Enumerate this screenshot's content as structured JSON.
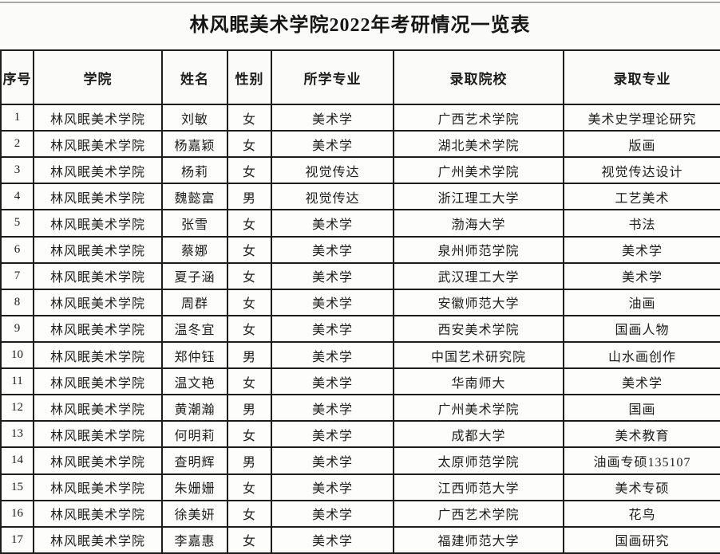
{
  "title": "林风眠美术学院2022年考研情况一览表",
  "table": {
    "column_keys": [
      "index",
      "college",
      "name",
      "gender",
      "major-studied",
      "admitted-school",
      "admitted-major"
    ],
    "headers": [
      "序号",
      "学院",
      "姓名",
      "性别",
      "所学专业",
      "录取院校",
      "录取专业"
    ],
    "rows": [
      [
        "1",
        "林风眠美术学院",
        "刘敏",
        "女",
        "美术学",
        "广西艺术学院",
        "美术史学理论研究"
      ],
      [
        "2",
        "林风眠美术学院",
        "杨嘉颖",
        "女",
        "美术学",
        "湖北美术学院",
        "版画"
      ],
      [
        "3",
        "林风眠美术学院",
        "杨莉",
        "女",
        "视觉传达",
        "广州美术学院",
        "视觉传达设计"
      ],
      [
        "4",
        "林风眠美术学院",
        "魏懿富",
        "男",
        "视觉传达",
        "浙江理工大学",
        "工艺美术"
      ],
      [
        "5",
        "林风眠美术学院",
        "张雪",
        "女",
        "美术学",
        "渤海大学",
        "书法"
      ],
      [
        "6",
        "林风眠美术学院",
        "蔡娜",
        "女",
        "美术学",
        "泉州师范学院",
        "美术学"
      ],
      [
        "7",
        "林风眠美术学院",
        "夏子涵",
        "女",
        "美术学",
        "武汉理工大学",
        "美术学"
      ],
      [
        "8",
        "林风眠美术学院",
        "周群",
        "女",
        "美术学",
        "安徽师范大学",
        "油画"
      ],
      [
        "9",
        "林风眠美术学院",
        "温冬宜",
        "女",
        "美术学",
        "西安美术学院",
        "国画人物"
      ],
      [
        "10",
        "林风眠美术学院",
        "郑仲钰",
        "男",
        "美术学",
        "中国艺术研究院",
        "山水画创作"
      ],
      [
        "11",
        "林风眠美术学院",
        "温文艳",
        "女",
        "美术学",
        "华南师大",
        "美术学"
      ],
      [
        "12",
        "林风眠美术学院",
        "黄潮瀚",
        "男",
        "美术学",
        "广州美术学院",
        "国画"
      ],
      [
        "13",
        "林风眠美术学院",
        "何明莉",
        "女",
        "美术学",
        "成都大学",
        "美术教育"
      ],
      [
        "14",
        "林风眠美术学院",
        "查明辉",
        "男",
        "美术学",
        "太原师范学院",
        "油画专硕135107"
      ],
      [
        "15",
        "林风眠美术学院",
        "朱姗姗",
        "女",
        "美术学",
        "江西师范大学",
        "美术专硕"
      ],
      [
        "16",
        "林风眠美术学院",
        "徐美妍",
        "女",
        "美术学",
        "广西艺术学院",
        "花鸟"
      ],
      [
        "17",
        "林风眠美术学院",
        "李嘉惠",
        "女",
        "美术学",
        "福建师范大学",
        "国画研究"
      ]
    ]
  },
  "colors": {
    "border": "#1c1c1c",
    "text": "#1d1d1d",
    "background": "#fbfbfa",
    "top_line": "#a8a8a8"
  }
}
